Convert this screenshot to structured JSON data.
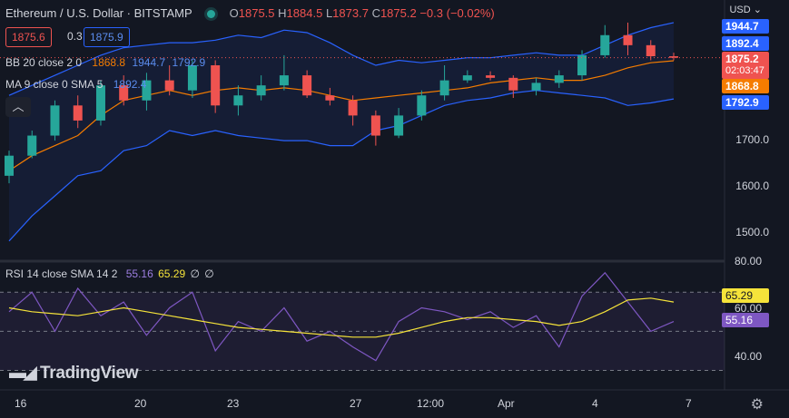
{
  "header": {
    "symbol": "Ethereum / U.S. Dollar · BITSTAMP",
    "open_label": "O",
    "open": "1875.5",
    "high_label": "H",
    "high": "1884.5",
    "low_label": "L",
    "low": "1873.7",
    "close_label": "C",
    "close": "1875.2",
    "change": "−0.3 (−0.02%)",
    "bid": "1875.6",
    "spread": "0.3",
    "ask": "1875.9"
  },
  "indicators": {
    "bb": {
      "label": "BB 20 close 2 0",
      "basis": "1868.8",
      "upper": "1944.7",
      "lower": "1792.9"
    },
    "ma": {
      "label": "MA 9 close 0 SMA 5",
      "value": "1892.4"
    },
    "rsi": {
      "label": "RSI 14 close SMA 14 2",
      "rsi": "55.16",
      "sma": "65.29",
      "extra1": "∅",
      "extra2": "∅"
    }
  },
  "price_axis": {
    "currency": "USD",
    "ticks": [
      "1700.0",
      "1600.0",
      "1500.0"
    ],
    "labels": {
      "bb_upper": "1944.7",
      "ma": "1892.4",
      "last": "1875.2",
      "countdown": "02:03:47",
      "bb_basis": "1868.8",
      "bb_lower": "1792.9"
    }
  },
  "rsi_axis": {
    "ticks": [
      "80.00",
      "60.00",
      "40.00"
    ],
    "rsi_sma": "65.29",
    "rsi": "55.16"
  },
  "time_axis": [
    "16",
    "20",
    "23",
    "27",
    "12:00",
    "Apr",
    "4",
    "7"
  ],
  "branding": {
    "logo": "TradingView"
  },
  "colors": {
    "background": "#131722",
    "up": "#26a69a",
    "down": "#ef5350",
    "bb": "#2962ff",
    "basis": "#f57c00",
    "rsi": "#7e57c2",
    "rsi_sma": "#f5e33a"
  },
  "chart_data": [
    {
      "type": "candlestick",
      "title": "Ethereum / U.S. Dollar · BITSTAMP",
      "ylim": [
        1470,
        1990
      ],
      "x_ticks": [
        "16",
        "20",
        "23",
        "27",
        "12:00",
        "Apr",
        "4",
        "7"
      ],
      "series": [
        {
          "name": "BB upper",
          "values": [
            1800,
            1820,
            1840,
            1860,
            1880,
            1895,
            1900,
            1905,
            1905,
            1910,
            1920,
            1915,
            1930,
            1925,
            1905,
            1880,
            1860,
            1870,
            1865,
            1870,
            1875,
            1875,
            1880,
            1885,
            1880,
            1880,
            1900,
            1920,
            1935,
            1945
          ]
        },
        {
          "name": "BB basis",
          "values": [
            1650,
            1680,
            1700,
            1720,
            1760,
            1790,
            1800,
            1810,
            1800,
            1810,
            1815,
            1810,
            1815,
            1810,
            1800,
            1790,
            1795,
            1800,
            1805,
            1810,
            1815,
            1825,
            1830,
            1835,
            1830,
            1830,
            1840,
            1855,
            1865,
            1869
          ]
        },
        {
          "name": "BB lower",
          "values": [
            1510,
            1560,
            1600,
            1640,
            1650,
            1690,
            1700,
            1730,
            1720,
            1730,
            1720,
            1715,
            1710,
            1710,
            1700,
            1700,
            1730,
            1740,
            1760,
            1780,
            1790,
            1795,
            1805,
            1810,
            1805,
            1800,
            1795,
            1780,
            1785,
            1793
          ]
        }
      ],
      "candles": [
        [
          1640,
          1680,
          1625,
          1690
        ],
        [
          1680,
          1720,
          1675,
          1730
        ],
        [
          1720,
          1780,
          1710,
          1790
        ],
        [
          1780,
          1750,
          1735,
          1800
        ],
        [
          1750,
          1820,
          1740,
          1830
        ],
        [
          1820,
          1790,
          1780,
          1840
        ],
        [
          1790,
          1830,
          1770,
          1845
        ],
        [
          1830,
          1810,
          1800,
          1860
        ],
        [
          1810,
          1860,
          1795,
          1870
        ],
        [
          1860,
          1780,
          1765,
          1870
        ],
        [
          1780,
          1800,
          1760,
          1820
        ],
        [
          1800,
          1820,
          1790,
          1840
        ],
        [
          1820,
          1840,
          1810,
          1880
        ],
        [
          1840,
          1800,
          1795,
          1850
        ],
        [
          1800,
          1790,
          1780,
          1815
        ],
        [
          1790,
          1760,
          1740,
          1800
        ],
        [
          1760,
          1720,
          1700,
          1770
        ],
        [
          1720,
          1760,
          1715,
          1775
        ],
        [
          1760,
          1800,
          1750,
          1810
        ],
        [
          1800,
          1830,
          1790,
          1860
        ],
        [
          1830,
          1840,
          1825,
          1850
        ],
        [
          1840,
          1835,
          1830,
          1848
        ],
        [
          1835,
          1810,
          1795,
          1840
        ],
        [
          1810,
          1825,
          1800,
          1835
        ],
        [
          1825,
          1840,
          1815,
          1850
        ],
        [
          1840,
          1880,
          1830,
          1890
        ],
        [
          1880,
          1920,
          1875,
          1940
        ],
        [
          1920,
          1900,
          1880,
          1945
        ],
        [
          1900,
          1878,
          1870,
          1910
        ],
        [
          1878,
          1875,
          1870,
          1885
        ]
      ]
    },
    {
      "type": "line",
      "title": "RSI 14 close SMA 14 2",
      "ylim": [
        20,
        85
      ],
      "series": [
        {
          "name": "RSI",
          "values": [
            60,
            70,
            50,
            72,
            58,
            65,
            48,
            62,
            70,
            40,
            55,
            50,
            62,
            45,
            50,
            42,
            35,
            55,
            62,
            60,
            56,
            60,
            52,
            58,
            42,
            68,
            80,
            65,
            50,
            55
          ]
        },
        {
          "name": "RSI SMA",
          "values": [
            62,
            60,
            59,
            58,
            60,
            62,
            60,
            58,
            56,
            54,
            52,
            51,
            50,
            49,
            48,
            47,
            47,
            49,
            52,
            55,
            57,
            57,
            56,
            55,
            53,
            55,
            60,
            66,
            67,
            65
          ]
        }
      ]
    }
  ]
}
